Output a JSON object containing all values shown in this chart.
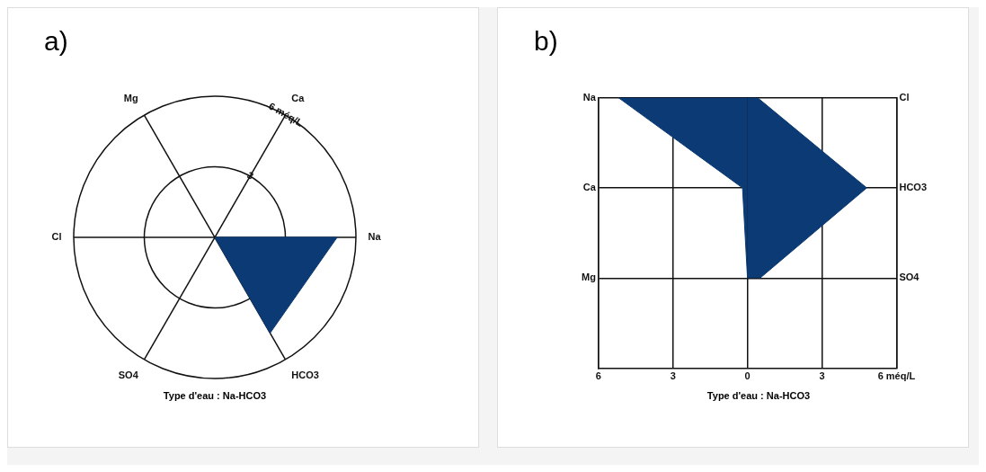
{
  "chart_data": [
    {
      "type": "radar",
      "title": "a)",
      "categories": [
        "Ca",
        "Na",
        "HCO3",
        "SO4",
        "Cl",
        "Mg"
      ],
      "series": [
        {
          "color": "#0b3a75",
          "values": [
            0,
            5.2,
            4.7,
            0,
            0,
            0
          ]
        }
      ],
      "ylim": [
        0,
        6
      ],
      "yticks": [
        {
          "value": 3,
          "label": "3"
        },
        {
          "value": 6,
          "label": "6 méq/L"
        }
      ],
      "grid": true,
      "legend": false,
      "annotations": [
        "Type d'eau : Na-HCO3"
      ]
    },
    {
      "type": "area",
      "title": "b)",
      "orientation": "horizontal",
      "categories": [
        "Na",
        "Ca",
        "Mg"
      ],
      "y2_categories": [
        "Cl",
        "HCO3",
        "SO4"
      ],
      "series": [
        {
          "color": "#0b3a75",
          "values": [
            -5.2,
            -0.2,
            0
          ]
        },
        {
          "color": "#0b3a75",
          "values": [
            0.4,
            4.8,
            0.5
          ]
        }
      ],
      "xlim": [
        -6,
        6
      ],
      "xticks": [
        {
          "value": -6,
          "label": "6"
        },
        {
          "value": -3,
          "label": "3"
        },
        0,
        3,
        {
          "value": 6,
          "label": "6 méq/L"
        }
      ],
      "grid": true,
      "legend": false,
      "annotations": [
        "Type d'eau : Na-HCO3"
      ]
    }
  ]
}
